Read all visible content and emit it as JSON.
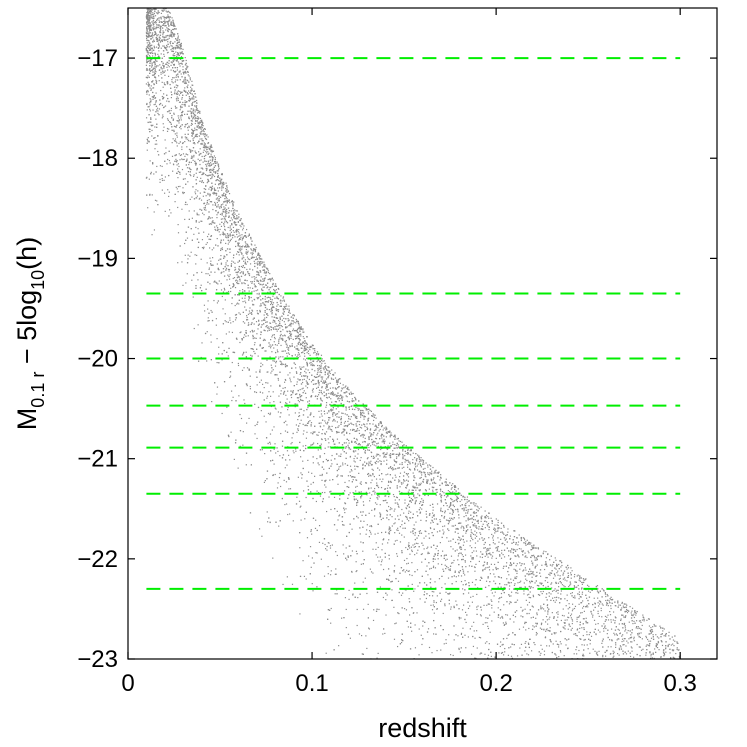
{
  "chart_data": {
    "type": "scatter",
    "title": "",
    "xlabel": "redshift",
    "ylabel": {
      "base": "M",
      "sub1": "0.1 r",
      "middle": " − 5log",
      "sub2": "10",
      "end": "(h)"
    },
    "xlim": [
      0,
      0.32
    ],
    "ylim": [
      -23,
      -16.5
    ],
    "y_reversed": true,
    "grid": false,
    "x_ticks": [
      {
        "value": 0,
        "label": "0"
      },
      {
        "value": 0.1,
        "label": "0.1"
      },
      {
        "value": 0.2,
        "label": "0.2"
      },
      {
        "value": 0.3,
        "label": "0.3"
      }
    ],
    "y_ticks": [
      {
        "value": -17,
        "label": "−17"
      },
      {
        "value": -18,
        "label": "−18"
      },
      {
        "value": -19,
        "label": "−19"
      },
      {
        "value": -20,
        "label": "−20"
      },
      {
        "value": -21,
        "label": "−21"
      },
      {
        "value": -22,
        "label": "−22"
      },
      {
        "value": -23,
        "label": "−23"
      }
    ],
    "scatter": {
      "color": "#8c8c8c",
      "approx_point_count": 9000,
      "x_min": 0.01,
      "x_max": 0.3,
      "magnitude_limit_boundary": [
        {
          "x": 0.02,
          "y": -16.4
        },
        {
          "x": 0.03,
          "y": -16.9
        },
        {
          "x": 0.04,
          "y": -17.6
        },
        {
          "x": 0.05,
          "y": -18.1
        },
        {
          "x": 0.06,
          "y": -18.55
        },
        {
          "x": 0.08,
          "y": -19.25
        },
        {
          "x": 0.1,
          "y": -19.85
        },
        {
          "x": 0.12,
          "y": -20.3
        },
        {
          "x": 0.15,
          "y": -20.85
        },
        {
          "x": 0.2,
          "y": -21.6
        },
        {
          "x": 0.25,
          "y": -22.2
        },
        {
          "x": 0.3,
          "y": -22.8
        }
      ]
    },
    "horizontal_lines": {
      "color": "#00ee00",
      "style": "dashed",
      "x_range": [
        0.01,
        0.3
      ],
      "y_values": [
        -17.0,
        -19.35,
        -20.0,
        -20.47,
        -20.89,
        -21.35,
        -22.3
      ]
    }
  }
}
